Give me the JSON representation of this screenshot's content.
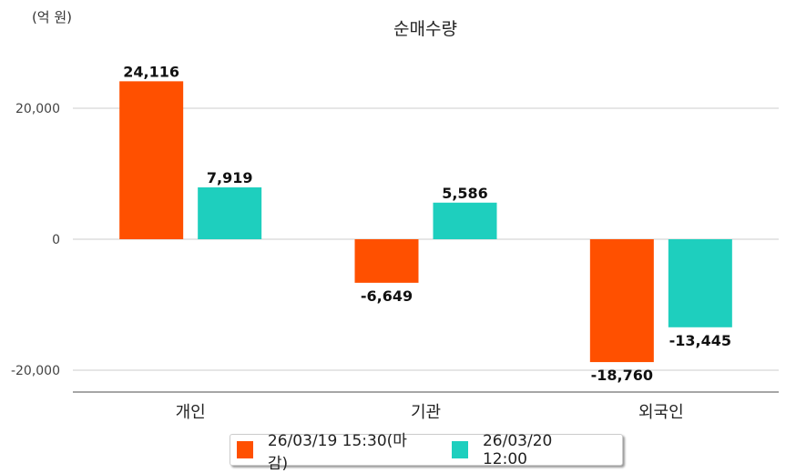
{
  "chart_data": {
    "type": "bar",
    "title": "순매수량",
    "unit_label": "(억 원)",
    "categories": [
      "개인",
      "기관",
      "외국인"
    ],
    "series": [
      {
        "name": "26/03/19 15:30(마감)",
        "color": "#ff5000",
        "values": [
          24116,
          -6649,
          -18760
        ],
        "labels": [
          "24,116",
          "-6,649",
          "-18,760"
        ]
      },
      {
        "name": "26/03/20 12:00",
        "color": "#1ecfbe",
        "values": [
          7919,
          5586,
          -13445
        ],
        "labels": [
          "7,919",
          "5,586",
          "-13,445"
        ]
      }
    ],
    "yticks": [
      20000,
      0,
      -20000
    ],
    "ytick_labels": [
      "20,000",
      "0",
      "-20,000"
    ],
    "ylim": [
      -23300,
      29500
    ],
    "grid": true,
    "legend_position": "bottom"
  }
}
